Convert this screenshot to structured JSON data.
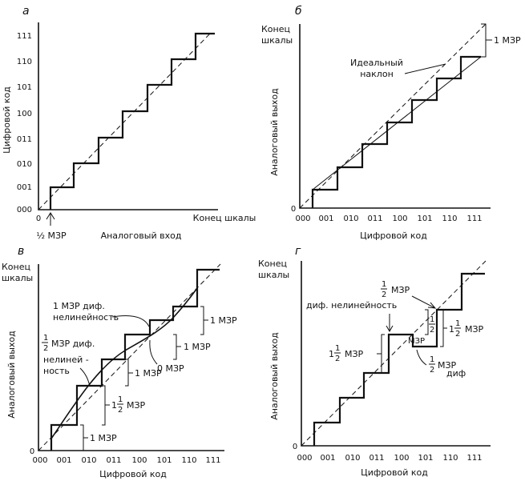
{
  "panels": {
    "a": {
      "letter": "а",
      "ylabel": "Цифровой код",
      "xlabel": "Аналоговый вход",
      "x_end": "Конец шкалы",
      "x_zero": "0",
      "x_half": "½ МЗР",
      "y_ticks": [
        "000",
        "001",
        "010",
        "011",
        "100",
        "101",
        "110",
        "111"
      ]
    },
    "b": {
      "letter": "б",
      "y_top_line1": "Конец",
      "y_top_line2": "шкалы",
      "ylabel": "Аналоговый выход",
      "xlabel": "Цифровой код",
      "y_zero": "0",
      "x_ticks": [
        "000",
        "001",
        "010",
        "011",
        "100",
        "101",
        "110",
        "111"
      ],
      "ideal_line1": "Идеальный",
      "ideal_line2": "наклон",
      "lsb": "1 МЗР"
    },
    "c": {
      "letter": "в",
      "y_top_line1": "Конец",
      "y_top_line2": "шкалы",
      "ylabel": "Аналоговый выход",
      "xlabel": "Цифровой код",
      "y_zero": "0",
      "x_ticks": [
        "000",
        "001",
        "010",
        "011",
        "100",
        "101",
        "110",
        "111"
      ],
      "ann1_line1": "1 МЗР диф.",
      "ann1_line2": "нелинейность",
      "ann2_frac_num": "1",
      "ann2_frac_den": "2",
      "ann2_line1": "МЗР диф.",
      "ann2_line2": "нелиней -",
      "ann2_line3": "ность",
      "lsb_right_top": "1 МЗР",
      "lsb_mid_right": "1 МЗР",
      "lsb_zero": "0 МЗР",
      "lsb_mid": "1 МЗР",
      "lsb_mid_low_int": "1",
      "lsb_mid_low_frac_num": "1",
      "lsb_mid_low_frac_den": "2",
      "lsb_mid_low_unit": "МЗР",
      "lsb_bottom": "1 МЗР"
    },
    "d": {
      "letter": "г",
      "y_top_line1": "Конец",
      "y_top_line2": "шкалы",
      "ylabel": "Аналоговый выход",
      "xlabel": "Цифровой код",
      "y_zero": "0",
      "x_ticks": [
        "000",
        "001",
        "010",
        "011",
        "100",
        "101",
        "110",
        "111"
      ],
      "top_frac_num": "1",
      "top_frac_den": "2",
      "top_unit": "МЗР",
      "top_line2": "диф. нелинейность",
      "left_int": "1",
      "left_frac_num": "1",
      "left_frac_den": "2",
      "left_unit": "МЗР",
      "inner_frac_num": "1",
      "inner_frac_den": "2",
      "inner_unit": "МЗР",
      "right_int": "1",
      "right_frac_num": "1",
      "right_frac_den": "2",
      "right_unit": "МЗР",
      "bottom_frac_num": "1",
      "bottom_frac_den": "2",
      "bottom_unit": "МЗР",
      "bottom_sub": "диф"
    }
  }
}
